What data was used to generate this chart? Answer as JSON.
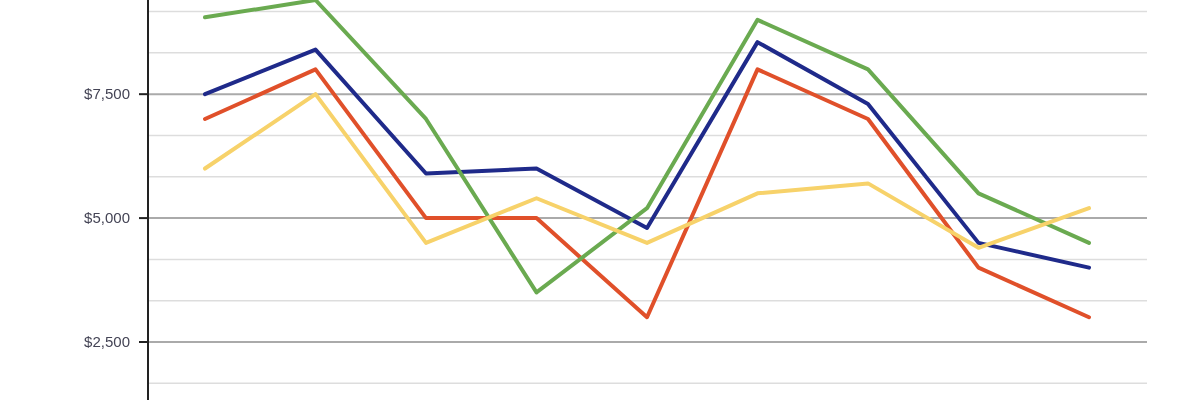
{
  "chart_data": {
    "type": "line",
    "categories": [
      null,
      null,
      null,
      null,
      null,
      null,
      null,
      null,
      null
    ],
    "series": [
      {
        "color": "#1f2a8a",
        "values": [
          7500,
          8400,
          5900,
          6000,
          4800,
          8550,
          7300,
          4500,
          4000
        ]
      },
      {
        "color": "#e0502a",
        "values": [
          7000,
          8000,
          5000,
          5000,
          3000,
          8000,
          7000,
          4000,
          3000
        ]
      },
      {
        "color": "#6aaa50",
        "values": [
          9050,
          9400,
          7000,
          3500,
          5200,
          9000,
          8000,
          5500,
          4500
        ]
      },
      {
        "color": "#f7d26a",
        "values": [
          6000,
          7500,
          4500,
          5400,
          4500,
          5500,
          5700,
          4400,
          5200
        ]
      }
    ],
    "ylim": [
      1330,
      9400
    ],
    "yticks": [
      {
        "value": 1666.67,
        "label": null
      },
      {
        "value": 2500,
        "label": "$2,500"
      },
      {
        "value": 3333.33,
        "label": null
      },
      {
        "value": 4166.67,
        "label": null
      },
      {
        "value": 5000,
        "label": "$5,000"
      },
      {
        "value": 5833.33,
        "label": null
      },
      {
        "value": 6666.67,
        "label": null
      },
      {
        "value": 7500,
        "label": "$7,500"
      },
      {
        "value": 8333.33,
        "label": null
      },
      {
        "value": 9166.67,
        "label": null
      }
    ],
    "grid": "y",
    "marker": "none",
    "line_style": "solid"
  }
}
